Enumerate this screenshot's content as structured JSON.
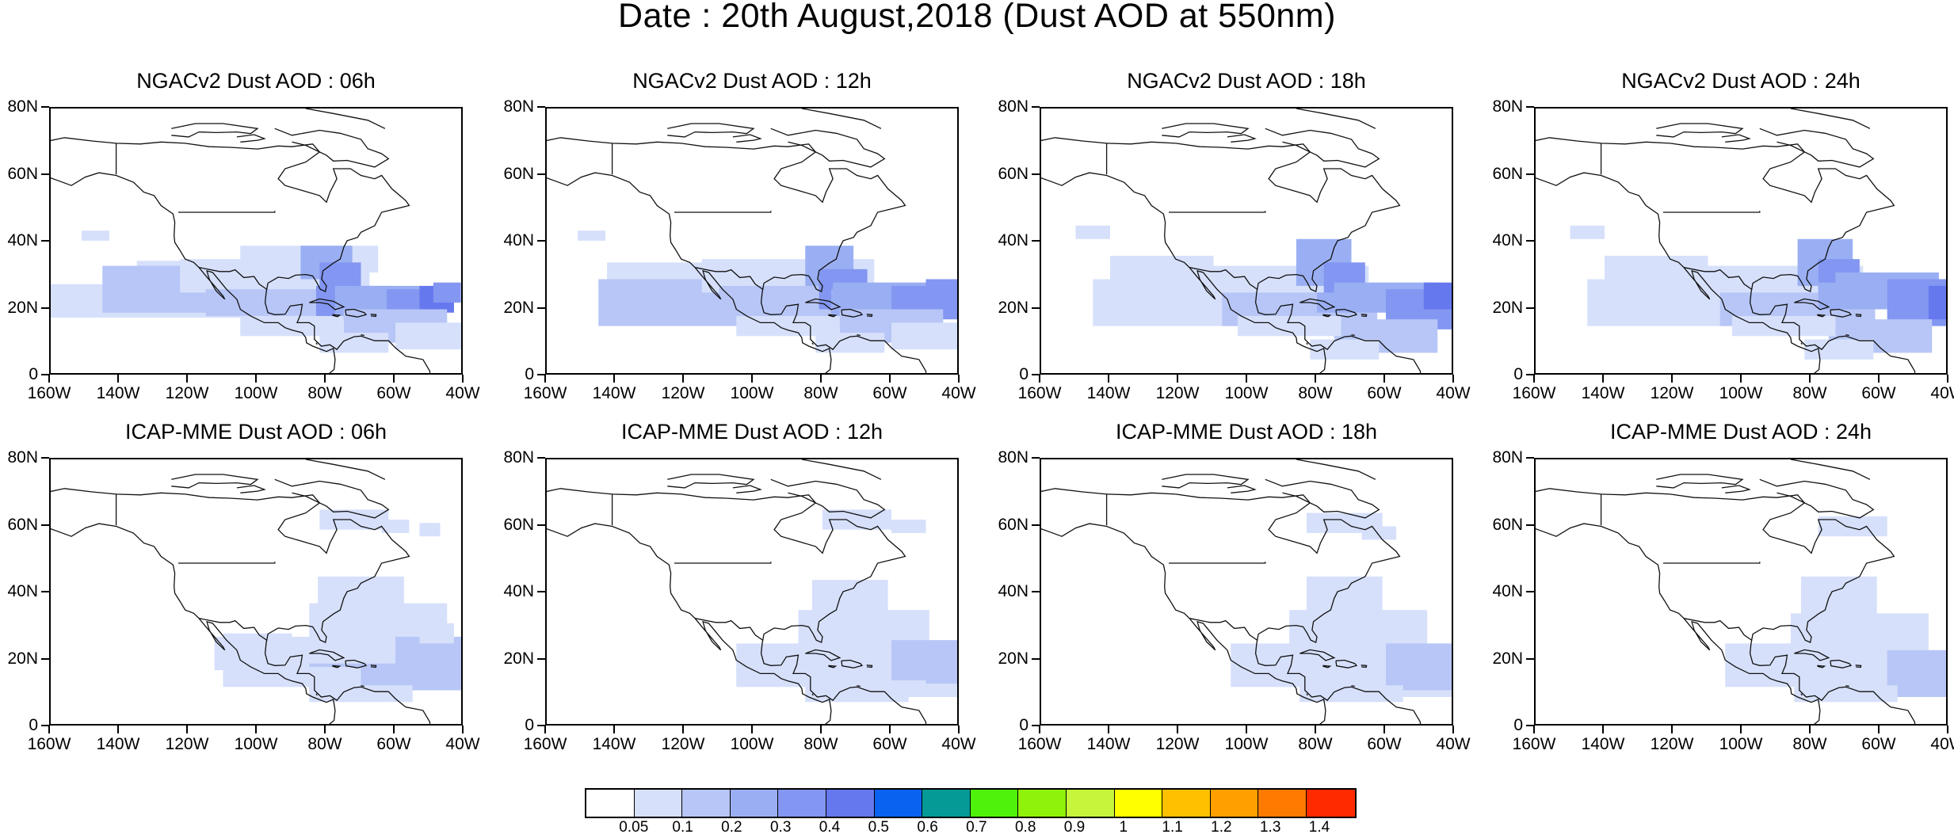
{
  "title": "Date : 20th August,2018 (Dust AOD at 550nm)",
  "panels": [
    {
      "title": "NGACv2 Dust AOD : 06h",
      "model": "NGACv2",
      "hour": "06h"
    },
    {
      "title": "NGACv2 Dust AOD : 12h",
      "model": "NGACv2",
      "hour": "12h"
    },
    {
      "title": "NGACv2 Dust AOD : 18h",
      "model": "NGACv2",
      "hour": "18h"
    },
    {
      "title": "NGACv2 Dust AOD : 24h",
      "model": "NGACv2",
      "hour": "24h"
    },
    {
      "title": "ICAP-MME Dust AOD : 06h",
      "model": "ICAP-MME",
      "hour": "06h"
    },
    {
      "title": "ICAP-MME Dust AOD : 12h",
      "model": "ICAP-MME",
      "hour": "12h"
    },
    {
      "title": "ICAP-MME Dust AOD : 18h",
      "model": "ICAP-MME",
      "hour": "18h"
    },
    {
      "title": "ICAP-MME Dust AOD : 24h",
      "model": "ICAP-MME",
      "hour": "24h"
    }
  ],
  "axes": {
    "lat_labels": [
      "80N",
      "60N",
      "40N",
      "20N",
      "0"
    ],
    "lon_labels": [
      "160W",
      "140W",
      "120W",
      "100W",
      "80W",
      "60W",
      "40W"
    ]
  },
  "colorbar": {
    "labels": [
      "0.05",
      "0.1",
      "0.2",
      "0.3",
      "0.4",
      "0.5",
      "0.6",
      "0.7",
      "0.8",
      "0.9",
      "1",
      "1.1",
      "1.2",
      "1.3",
      "1.4"
    ],
    "colors": [
      "#ffffff",
      "#d6e0fb",
      "#b7c6f6",
      "#9aaff3",
      "#8396f1",
      "#6678ee",
      "#0a62f0",
      "#069a96",
      "#4ef20a",
      "#8ff20a",
      "#c6f53c",
      "#ffff00",
      "#ffc000",
      "#ffa000",
      "#ff7a00",
      "#ff2a00"
    ]
  }
}
